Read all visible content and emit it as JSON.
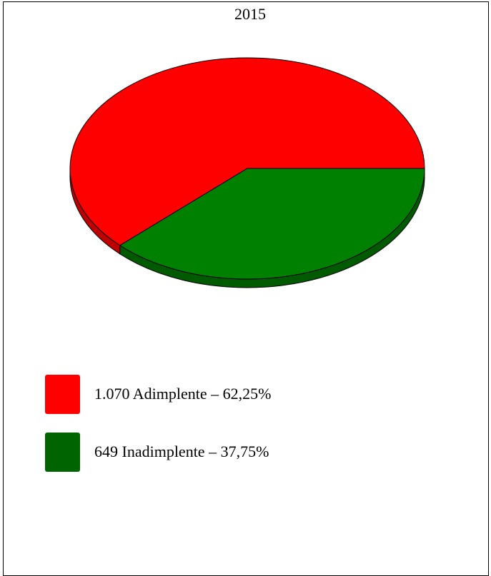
{
  "chart_data": {
    "type": "pie",
    "title": "2015",
    "slices": [
      {
        "label": "1.070 Adimplente – 62,25%",
        "value": 1070,
        "percent": 62.25,
        "color": "#ff0000",
        "side_color": "#c00000"
      },
      {
        "label": "649 Inadimplente – 37,75%",
        "value": 649,
        "percent": 37.75,
        "color": "#008000",
        "side_color": "#005a00"
      }
    ],
    "legend": {
      "position": "bottom-left",
      "items": [
        {
          "label": "1.070 Adimplente – 62,25%",
          "color": "#ff0000"
        },
        {
          "label": "649 Inadimplente – 37,75%",
          "color": "#006400"
        }
      ]
    }
  }
}
